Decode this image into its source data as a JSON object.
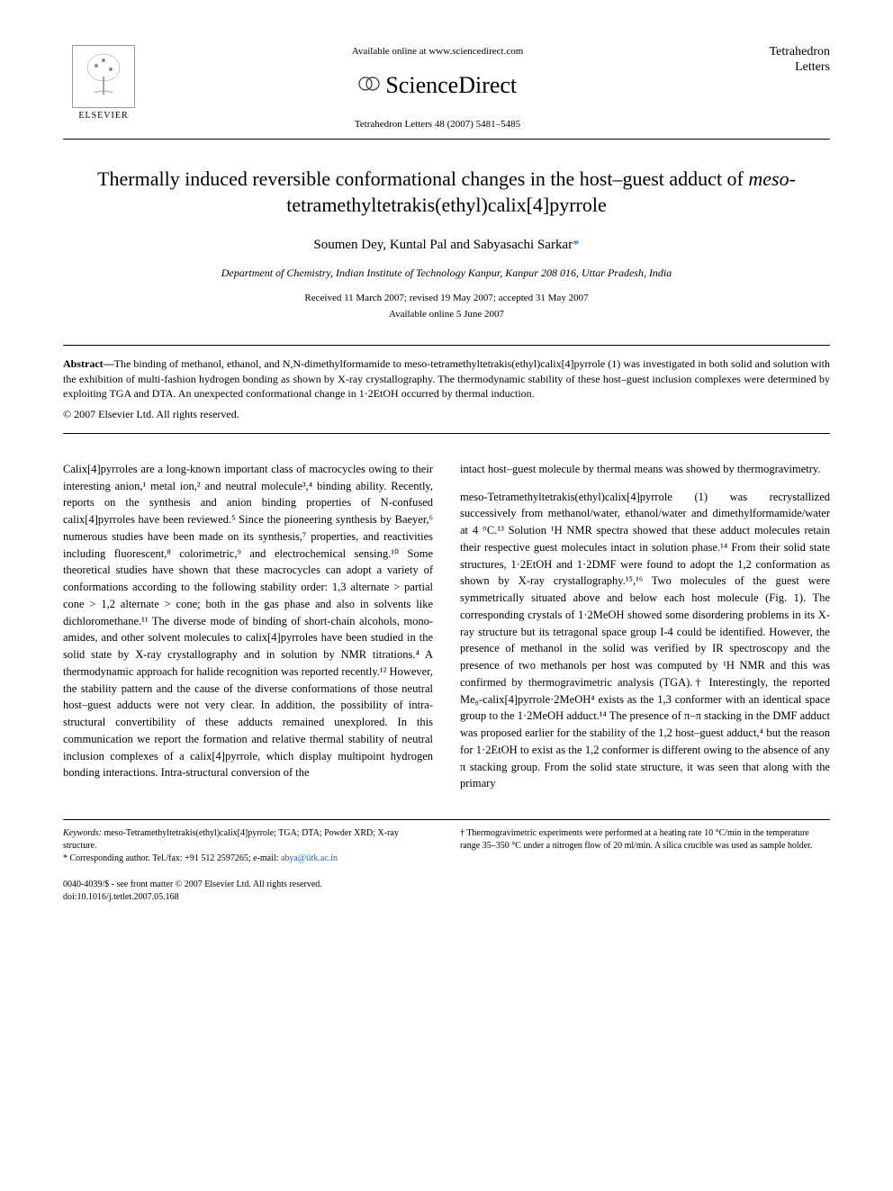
{
  "header": {
    "available_online": "Available online at www.sciencedirect.com",
    "sciencedirect": "ScienceDirect",
    "journal_ref": "Tetrahedron Letters 48 (2007) 5481–5485",
    "journal_name_line1": "Tetrahedron",
    "journal_name_line2": "Letters",
    "elsevier": "ELSEVIER"
  },
  "title": "Thermally induced reversible conformational changes in the host–guest adduct of meso-tetramethyltetrakis(ethyl)calix[4]pyrrole",
  "title_parts": {
    "before_italic": "Thermally induced reversible conformational changes in the host–guest adduct of ",
    "italic": "meso",
    "after_italic": "-tetramethyltetrakis(ethyl)calix[4]pyrrole"
  },
  "authors": "Soumen Dey, Kuntal Pal and Sabyasachi Sarkar",
  "corresponding_marker": "*",
  "affiliation": "Department of Chemistry, Indian Institute of Technology Kanpur, Kanpur 208 016, Uttar Pradesh, India",
  "dates": {
    "received": "Received 11 March 2007; revised 19 May 2007; accepted 31 May 2007",
    "available": "Available online 5 June 2007"
  },
  "abstract": {
    "label": "Abstract—",
    "text": "The binding of methanol, ethanol, and N,N-dimethylformamide to meso-tetramethyltetrakis(ethyl)calix[4]pyrrole (1) was investigated in both solid and solution with the exhibition of multi-fashion hydrogen bonding as shown by X-ray crystallography. The thermodynamic stability of these host–guest inclusion complexes were determined by exploiting TGA and DTA. An unexpected conformational change in 1·2EtOH occurred by thermal induction.",
    "copyright": "© 2007 Elsevier Ltd. All rights reserved."
  },
  "body": {
    "col1": "Calix[4]pyrroles are a long-known important class of macrocycles owing to their interesting anion,¹ metal ion,² and neutral molecule³,⁴ binding ability. Recently, reports on the synthesis and anion binding properties of N-confused calix[4]pyrroles have been reviewed.⁵ Since the pioneering synthesis by Baeyer,⁶ numerous studies have been made on its synthesis,⁷ properties, and reactivities including fluorescent,⁸ colorimetric,⁹ and electrochemical sensing.¹⁰ Some theoretical studies have shown that these macrocycles can adopt a variety of conformations according to the following stability order: 1,3 alternate > partial cone > 1,2 alternate > cone; both in the gas phase and also in solvents like dichloromethane.¹¹ The diverse mode of binding of short-chain alcohols, mono-amides, and other solvent molecules to calix[4]pyrroles have been studied in the solid state by X-ray crystallography and in solution by NMR titrations.⁴ A thermodynamic approach for halide recognition was reported recently.¹² However, the stability pattern and the cause of the diverse conformations of those neutral host–guest adducts were not very clear. In addition, the possibility of intra-structural convertibility of these adducts remained unexplored. In this communication we report the formation and relative thermal stability of neutral inclusion complexes of a calix[4]pyrrole, which display multipoint hydrogen bonding interactions. Intra-structural conversion of the",
    "col2": "intact host–guest molecule by thermal means was showed by thermogravimetry.\n\nmeso-Tetramethyltetrakis(ethyl)calix[4]pyrrole (1) was recrystallized successively from methanol/water, ethanol/water and dimethylformamide/water at 4 °C.¹³ Solution ¹H NMR spectra showed that these adduct molecules retain their respective guest molecules intact in solution phase.¹⁴ From their solid state structures, 1·2EtOH and 1·2DMF were found to adopt the 1,2 conformation as shown by X-ray crystallography.¹⁵,¹⁶ Two molecules of the guest were symmetrically situated above and below each host molecule (Fig. 1). The corresponding crystals of 1·2MeOH showed some disordering problems in its X-ray structure but its tetragonal space group I-4 could be identified. However, the presence of methanol in the solid was verified by IR spectroscopy and the presence of two methanols per host was computed by ¹H NMR and this was confirmed by thermogravimetric analysis (TGA).† Interestingly, the reported Me₈-calix[4]pyrrole·2MeOH⁴ exists as the 1,3 conformer with an identical space group to the 1·2MeOH adduct.¹⁴ The presence of π–π stacking in the DMF adduct was proposed earlier for the stability of the 1,2 host–guest adduct,⁴ but the reason for 1·2EtOH to exist as the 1,2 conformer is different owing to the absence of any π stacking group. From the solid state structure, it was seen that along with the primary"
  },
  "footer": {
    "keywords_label": "Keywords:",
    "keywords": " meso-Tetramethyltetrakis(ethyl)calix[4]pyrrole; TGA; DTA; Powder XRD; X-ray structure.",
    "corresponding_label": "* Corresponding author. Tel./fax: +91 512 2597265; e-mail: ",
    "corresponding_email": "abya@iitk.ac.in",
    "dagger": "† Thermogravimetric experiments were performed at a heating rate 10 °C/min in the temperature range 35–350 °C under a nitrogen flow of 20 ml/min. A silica crucible was used as sample holder.",
    "issn": "0040-4039/$ - see front matter © 2007 Elsevier Ltd. All rights reserved.",
    "doi": "doi:10.1016/j.tetlet.2007.05.168"
  },
  "colors": {
    "background": "#ffffff",
    "text": "#000000",
    "link": "#0066cc",
    "border": "#000000"
  },
  "fonts": {
    "body_size": 12.5,
    "title_size": 22,
    "author_size": 15,
    "abstract_size": 12,
    "footer_size": 10
  }
}
